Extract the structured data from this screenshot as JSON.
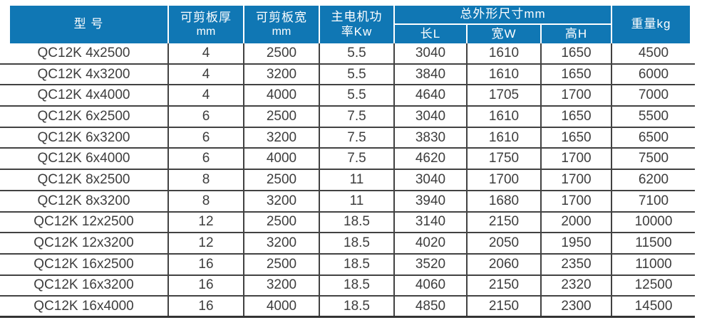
{
  "colors": {
    "header_bg": "#1077b4",
    "header_text": "#ffffff",
    "body_text": "#3d3d3d",
    "grid_line": "#424242"
  },
  "table": {
    "header": {
      "model": "型 号",
      "thickness_l1": "可剪板厚",
      "thickness_l2": "mm",
      "plate_width_l1": "可剪板宽",
      "plate_width_l2": "mm",
      "power_l1": "主电机功",
      "power_l2": "率Kw",
      "dims_group": "总外形尺寸mm",
      "dim_length": "长L",
      "dim_width": "宽W",
      "dim_height": "高H",
      "weight": "重量kg"
    },
    "columns": [
      "model",
      "shear_thickness_mm",
      "shear_width_mm",
      "main_motor_power_kw",
      "length_mm",
      "width_mm",
      "height_mm",
      "weight_kg"
    ],
    "rows": [
      [
        "QC12K 4x2500",
        "4",
        "2500",
        "5.5",
        "3040",
        "1610",
        "1650",
        "4500"
      ],
      [
        "QC12K 4x3200",
        "4",
        "3200",
        "5.5",
        "3840",
        "1610",
        "1650",
        "6000"
      ],
      [
        "QC12K 4x4000",
        "4",
        "4000",
        "5.5",
        "4640",
        "1705",
        "1700",
        "7000"
      ],
      [
        "QC12K 6x2500",
        "6",
        "2500",
        "7.5",
        "3040",
        "1610",
        "1650",
        "5500"
      ],
      [
        "QC12K 6x3200",
        "6",
        "3200",
        "7.5",
        "3830",
        "1610",
        "1650",
        "6500"
      ],
      [
        "QC12K 6x4000",
        "6",
        "4000",
        "7.5",
        "4620",
        "1750",
        "1700",
        "7500"
      ],
      [
        "QC12K 8x2500",
        "8",
        "2500",
        "11",
        "3040",
        "1700",
        "1700",
        "6200"
      ],
      [
        "QC12K 8x3200",
        "8",
        "3200",
        "11",
        "3940",
        "1680",
        "1700",
        "7100"
      ],
      [
        "QC12K 12x2500",
        "12",
        "2500",
        "18.5",
        "3140",
        "2150",
        "2000",
        "10000"
      ],
      [
        "QC12K 12x3200",
        "12",
        "3200",
        "18.5",
        "4020",
        "2050",
        "1950",
        "11500"
      ],
      [
        "QC12K 16x2500",
        "16",
        "2500",
        "18.5",
        "3520",
        "2060",
        "2350",
        "11000"
      ],
      [
        "QC12K 16x3200",
        "16",
        "3200",
        "18.5",
        "4060",
        "2150",
        "2320",
        "12500"
      ],
      [
        "QC12K 16x4000",
        "16",
        "4000",
        "18.5",
        "4850",
        "2150",
        "2300",
        "14500"
      ]
    ]
  }
}
